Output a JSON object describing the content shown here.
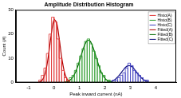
{
  "chart_data": {
    "type": "histogram",
    "title": "Amplitude Distribution Histogram",
    "x_label": "Peak inward current (nA)",
    "y_label": "Count (#)",
    "xlim": [
      -1.5,
      4.8
    ],
    "xticks": [
      -1,
      0,
      1,
      2,
      3,
      4
    ],
    "ylim": [
      0,
      30
    ],
    "yticks": [
      0,
      10,
      20,
      30
    ],
    "grid": false,
    "legend": "upper right",
    "series": [
      {
        "name": "Histo(A)",
        "color": "#e03030",
        "type": "histogram",
        "bins": [
          -0.6,
          -0.5,
          -0.4,
          -0.3,
          -0.2,
          -0.1,
          0.0,
          0.1,
          0.2,
          0.3,
          0.4,
          0.5,
          0.6
        ],
        "values": [
          1,
          3,
          6,
          12,
          20,
          27,
          25,
          18,
          10,
          5,
          2,
          1
        ]
      },
      {
        "name": "Histo(B)",
        "color": "#2a9a2a",
        "type": "histogram",
        "bins": [
          0.5,
          0.6,
          0.7,
          0.8,
          0.9,
          1.0,
          1.1,
          1.2,
          1.3,
          1.4,
          1.5,
          1.6,
          1.7,
          1.8,
          1.9,
          2.0,
          2.1,
          2.2
        ],
        "values": [
          1,
          2,
          3,
          5,
          8,
          11,
          14,
          17,
          18,
          16,
          13,
          10,
          7,
          4,
          3,
          1,
          1
        ]
      },
      {
        "name": "Histo(C)",
        "color": "#4040c0",
        "type": "histogram",
        "bins": [
          2.3,
          2.4,
          2.5,
          2.6,
          2.7,
          2.8,
          2.9,
          3.0,
          3.1,
          3.2,
          3.3,
          3.4,
          3.5,
          3.6,
          3.7
        ],
        "values": [
          1,
          1,
          2,
          3,
          4,
          6,
          8,
          7,
          5,
          4,
          3,
          2,
          1,
          1
        ]
      },
      {
        "name": "Fitted(A)",
        "color": "#b00000",
        "type": "line",
        "x": [
          -0.6,
          -0.5,
          -0.4,
          -0.3,
          -0.2,
          -0.1,
          0.0,
          0.1,
          0.2,
          0.3,
          0.4,
          0.5,
          0.6
        ],
        "values": [
          0.1,
          0.6,
          2.2,
          6,
          12.6,
          20.5,
          25.9,
          24.8,
          18.4,
          10.5,
          4.7,
          1.6,
          0.4
        ]
      },
      {
        "name": "Fitted(B)",
        "color": "#006a00",
        "type": "line",
        "x": [
          0.4,
          0.5,
          0.6,
          0.7,
          0.8,
          0.9,
          1.0,
          1.1,
          1.2,
          1.3,
          1.4,
          1.5,
          1.6,
          1.7,
          1.8,
          1.9,
          2.0,
          2.1,
          2.2,
          2.3
        ],
        "values": [
          0.1,
          0.3,
          0.8,
          1.7,
          3.3,
          5.7,
          8.9,
          12.4,
          15.4,
          17.3,
          17.3,
          15.4,
          12.4,
          8.9,
          5.7,
          3.3,
          1.7,
          0.8,
          0.3,
          0.1
        ]
      },
      {
        "name": "Fitted(C)",
        "color": "#101080",
        "type": "line",
        "x": [
          2.2,
          2.3,
          2.4,
          2.5,
          2.6,
          2.7,
          2.8,
          2.9,
          3.0,
          3.1,
          3.2,
          3.3,
          3.4,
          3.5,
          3.6,
          3.7
        ],
        "values": [
          0.3,
          0.7,
          1.3,
          2.3,
          3.5,
          4.9,
          6.2,
          6.9,
          6.9,
          6.2,
          4.9,
          3.5,
          2.3,
          1.3,
          0.7,
          0.3
        ]
      }
    ]
  }
}
